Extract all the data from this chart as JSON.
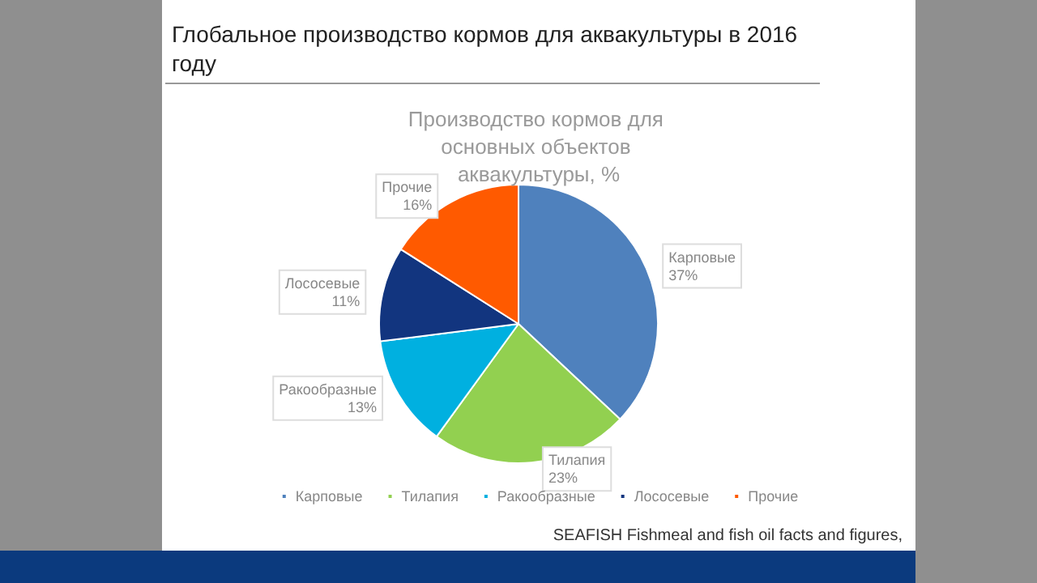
{
  "chart_data": {
    "type": "pie",
    "title": "Глобальное производство кормов для аквакультуры в 2016 году",
    "subtitle": "Производство кормов для основных объектов аквакультуры, %",
    "categories": [
      "Карповые",
      "Тилапия",
      "Ракообразные",
      "Лососевые",
      "Прочие"
    ],
    "values": [
      37,
      23,
      13,
      11,
      16
    ],
    "colors": [
      "#4f81bd",
      "#92d050",
      "#00b0e0",
      "#12357f",
      "#ff5a00"
    ],
    "value_labels": [
      "37%",
      "23%",
      "13%",
      "11%",
      "16%"
    ],
    "legend": "bottom",
    "annotations": [
      "SEAFISH Fishmeal and fish oil facts and figures,"
    ]
  }
}
